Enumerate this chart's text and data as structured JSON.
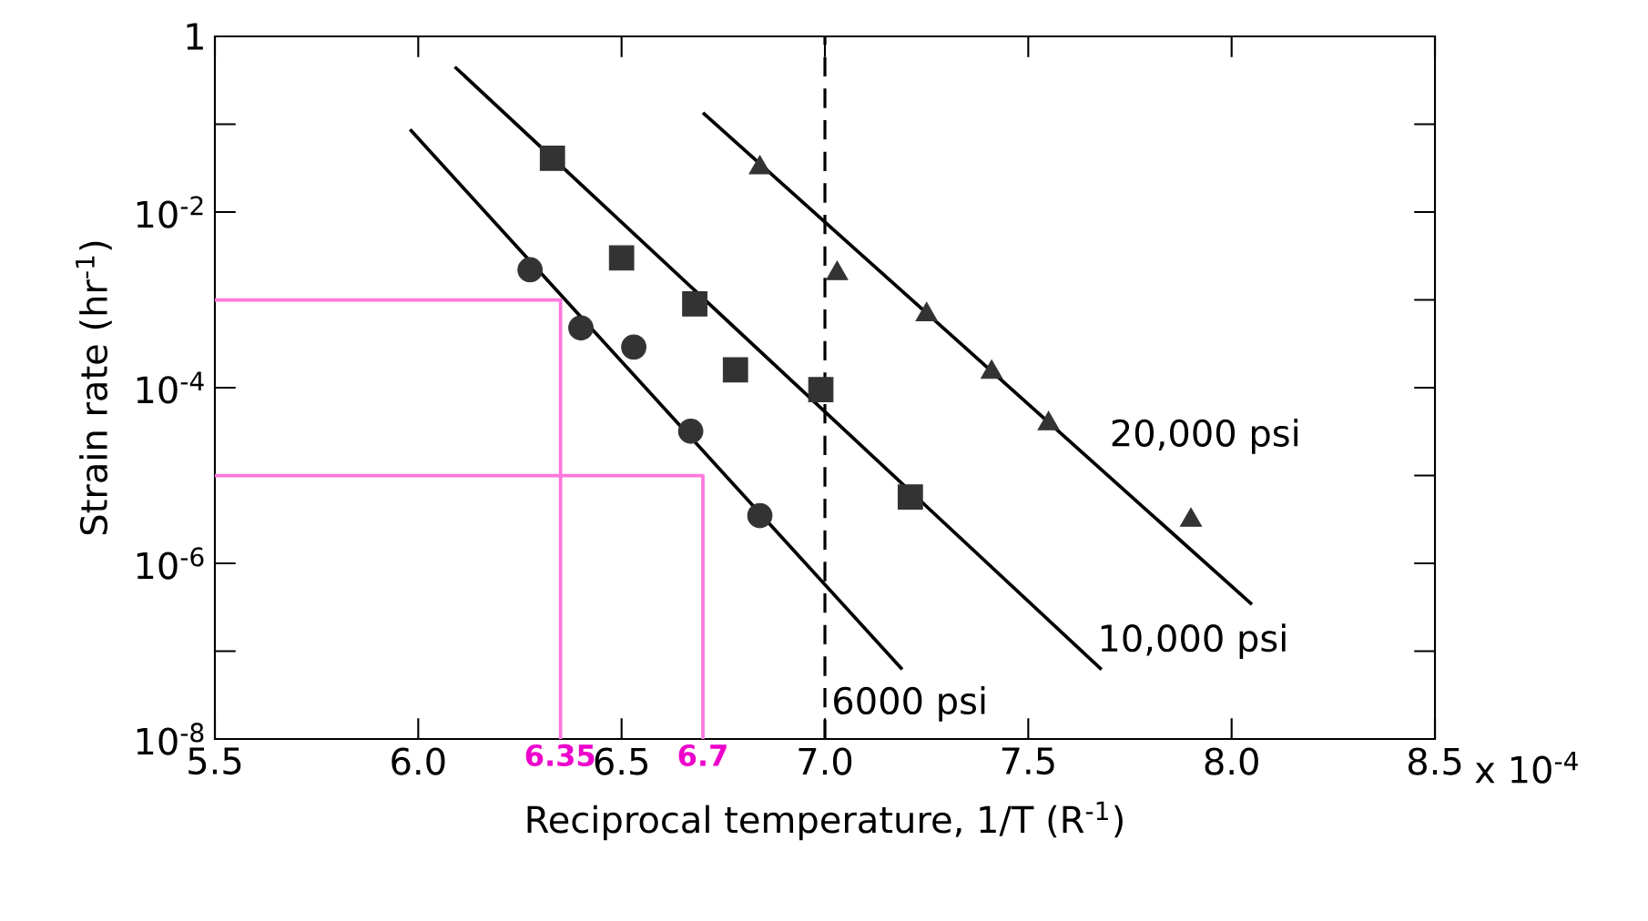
{
  "chart_data": {
    "type": "scatter",
    "xlabel": "Reciprocal temperature, 1/T (R$^{-1}$)",
    "ylabel": "Strain rate (hr$^{-1}$)",
    "log": "y",
    "xlim": [
      5.5,
      8.5
    ],
    "ylim": [
      1e-08,
      1
    ],
    "xticks": [
      {
        "value": 5.5,
        "label": "5.5"
      },
      {
        "value": 6.0,
        "label": "6.0"
      },
      {
        "value": 6.5,
        "label": "6.5"
      },
      {
        "value": 7.0,
        "label": "7.0"
      },
      {
        "value": 7.5,
        "label": "7.5"
      },
      {
        "value": 8.0,
        "label": "8.0"
      },
      {
        "value": 8.5,
        "label": "8.5"
      }
    ],
    "yticks": [
      1,
      {
        "value": 0.1,
        "label": null
      },
      {
        "value": 0.01,
        "label": "10$^{-2}$"
      },
      {
        "value": 0.001,
        "label": null
      },
      {
        "value": 0.0001,
        "label": "10$^{-4}$"
      },
      {
        "value": 1e-05,
        "label": null
      },
      {
        "value": 1e-06,
        "label": "10$^{-6}$"
      },
      {
        "value": 1e-07,
        "label": null
      },
      {
        "value": 1e-08,
        "label": "10$^{-8}$"
      }
    ],
    "series": [
      {
        "type": "line",
        "color": "#ff77dd",
        "x": [
          5.5,
          6.35,
          6.35
        ],
        "values": [
          0.001,
          0.001,
          1e-08
        ]
      },
      {
        "type": "line",
        "color": "#ff77dd",
        "x": [
          5.5,
          6.7,
          6.7
        ],
        "values": [
          1e-05,
          1e-05,
          1e-08
        ]
      },
      {
        "type": "line",
        "color": "#000000",
        "x": [
          5.98,
          7.19
        ],
        "values": [
          0.087,
          6.2e-08
        ]
      },
      {
        "type": "line",
        "color": "#000000",
        "x": [
          6.09,
          7.68
        ],
        "values": [
          0.45,
          6.2e-08
        ]
      },
      {
        "type": "line",
        "color": "#000000",
        "x": [
          6.7,
          8.05
        ],
        "values": [
          0.135,
          3.4e-07
        ]
      },
      {
        "marker": "circle",
        "color": "#333333",
        "x": [
          6.275,
          6.4,
          6.53,
          6.67,
          6.84
        ],
        "values": [
          0.0022,
          0.00048,
          0.00029,
          3.2e-05,
          3.5e-06
        ]
      },
      {
        "marker": "square",
        "color": "#333333",
        "x": [
          6.33,
          6.5,
          6.68,
          6.78,
          6.99,
          7.21
        ],
        "values": [
          0.041,
          0.003,
          0.0009,
          0.00016,
          9.5e-05,
          5.7e-06
        ]
      },
      {
        "marker": "triangle",
        "color": "#333333",
        "x": [
          6.84,
          7.03,
          7.25,
          7.41,
          7.55,
          7.9
        ],
        "values": [
          0.032,
          0.002,
          0.00068,
          0.00015,
          3.9e-05,
          3.1e-06
        ]
      }
    ],
    "ref_lines": [
      {
        "axis": "x",
        "value": 7.0,
        "line_style": "dashed",
        "color": "#000000"
      }
    ],
    "annotations": [
      "20,000 psi",
      "10,000 psi",
      "6000 psi",
      "6.35",
      "6.7",
      "x 10$^{-4}$"
    ]
  }
}
